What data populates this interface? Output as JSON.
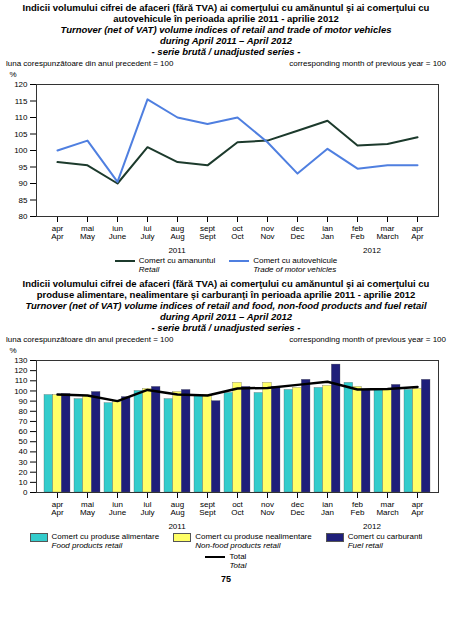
{
  "page": "75",
  "chart_data": [
    {
      "type": "line",
      "title": "Indicii volumului cifrei de afaceri (fără TVA) ai comerţului cu amănuntul şi ai comerţului cu autovehicule în perioada aprilie 2011 - aprilie 2012",
      "subtitle": [
        "Turnover (net of VAT) volume indices of retail and trade of motor vehicles",
        "during April 2011 – April 2012",
        "- serie brută / unadjusted series -"
      ],
      "annotations": [
        "luna corespunzătoare din anul precedent = 100",
        "corresponding month of previous year = 100"
      ],
      "ylabel": "%",
      "categories": [
        "apr\nApr",
        "mai\nMay",
        "iun\nJune",
        "iul\nJuly",
        "aug\nAug",
        "sept\nSept",
        "oct\nOct",
        "nov\nNov",
        "dec\nDec",
        "ian\nJan",
        "feb\nFeb",
        "mar\nMarch",
        "apr\nApr"
      ],
      "year_groups": [
        {
          "label": "2011",
          "first": 0,
          "last": 8
        },
        {
          "label": "2012",
          "first": 9,
          "last": 12
        }
      ],
      "series": [
        {
          "name": "Comert cu amanuntul",
          "name_en": "Retail",
          "color": "#1c3a2c",
          "type": "line",
          "values": [
            96.5,
            95.5,
            90,
            101,
            96.5,
            95.5,
            102.5,
            103,
            106,
            109,
            101.5,
            102,
            104
          ]
        },
        {
          "name": "Comert cu autovehicule",
          "name_en": "Trade of motor vehicles",
          "color": "#4f7fe0",
          "type": "line",
          "values": [
            100,
            103,
            90.5,
            115.5,
            110,
            108,
            110,
            102.5,
            93,
            100.5,
            94.5,
            95.5,
            95.5
          ]
        }
      ],
      "ylim": [
        80,
        120
      ],
      "yticks": [
        80,
        85,
        90,
        95,
        100,
        105,
        110,
        115,
        120
      ],
      "grid": false,
      "legend": "bottom"
    },
    {
      "type": "bar",
      "title": "Indicii volumului cifrei de afaceri (fără TVA) ai comerţului cu amănuntul şi ai comerţului cu produse alimentare, nealimentare şi carburanţi în perioada aprilie 2011 - aprilie 2012",
      "subtitle": [
        "Turnover (net of VAT) volume indices of retail and food, non-food products and fuel retail",
        "during April 2011 – April 2012",
        "- serie brută / unadjusted series -"
      ],
      "annotations": [
        "luna corespunzătoare din anul precedent = 100",
        "corresponding month of previous year = 100"
      ],
      "ylabel": "%",
      "categories": [
        "apr\nApr",
        "mai\nMay",
        "iun\nJune",
        "iul\nJuly",
        "aug\nAug",
        "sept\nSept",
        "oct\nOct",
        "nov\nNov",
        "dec\nDec",
        "ian\nJan",
        "feb\nFeb",
        "mar\nMarch",
        "apr\nApr"
      ],
      "year_groups": [
        {
          "label": "2011",
          "first": 0,
          "last": 8
        },
        {
          "label": "2012",
          "first": 9,
          "last": 12
        }
      ],
      "series": [
        {
          "name": "Comert cu produse alimentare",
          "name_en": "Food products retail",
          "color": "#33cccc",
          "type": "bar",
          "values": [
            96,
            92,
            88,
            100,
            92,
            95,
            98,
            98,
            101,
            103,
            108,
            102,
            101
          ]
        },
        {
          "name": "Comert cu produse nealimentare",
          "name_en": "Non-food products retail",
          "color": "#ffff66",
          "type": "bar",
          "values": [
            96,
            95,
            89,
            102,
            99,
            96,
            108,
            108,
            103,
            105,
            104,
            102,
            102
          ]
        },
        {
          "name": "Comert cu carburanti",
          "name_en": "Fuel retail",
          "color": "#1f1f7a",
          "type": "bar",
          "values": [
            97,
            99,
            94,
            104,
            101,
            90,
            104,
            104,
            111,
            126,
            101,
            106,
            111
          ]
        },
        {
          "name": "Total",
          "name_en": "Total",
          "color": "#000000",
          "type": "line",
          "values": [
            96.5,
            95.5,
            90,
            101,
            96.5,
            95.5,
            102.5,
            103,
            106,
            109,
            101.5,
            102,
            104
          ]
        }
      ],
      "ylim": [
        0,
        130
      ],
      "yticks": [
        0,
        10,
        20,
        30,
        40,
        50,
        60,
        70,
        80,
        90,
        100,
        110,
        120,
        130
      ],
      "grid": false,
      "legend": "bottom"
    }
  ]
}
